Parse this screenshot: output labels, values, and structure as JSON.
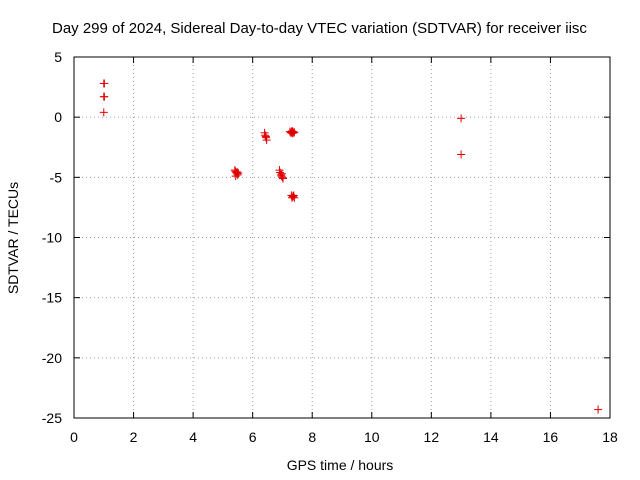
{
  "chart_data": {
    "type": "scatter",
    "title": "Day 299 of 2024, Sidereal Day-to-day VTEC variation (SDTVAR) for receiver iisc",
    "xlabel": "GPS time / hours",
    "ylabel": "SDTVAR / TECUs",
    "xlim": [
      0,
      18
    ],
    "ylim": [
      -25,
      5
    ],
    "xticks": [
      0,
      2,
      4,
      6,
      8,
      10,
      12,
      14,
      16,
      18
    ],
    "yticks": [
      5,
      0,
      -5,
      -10,
      -15,
      -20,
      -25
    ],
    "grid": true,
    "marker": "+",
    "marker_color": "#e00000",
    "series": [
      {
        "name": "SDTVAR",
        "points": [
          [
            1.0,
            2.8
          ],
          [
            1.02,
            2.8
          ],
          [
            1.0,
            1.7
          ],
          [
            1.02,
            1.7
          ],
          [
            1.0,
            0.4
          ],
          [
            5.4,
            -4.4
          ],
          [
            5.42,
            -4.5
          ],
          [
            5.45,
            -4.6
          ],
          [
            5.47,
            -4.7
          ],
          [
            5.5,
            -4.8
          ],
          [
            5.43,
            -4.9
          ],
          [
            5.48,
            -4.55
          ],
          [
            5.52,
            -4.65
          ],
          [
            6.4,
            -1.3
          ],
          [
            6.42,
            -1.5
          ],
          [
            6.45,
            -1.7
          ],
          [
            6.47,
            -1.9
          ],
          [
            6.44,
            -1.6
          ],
          [
            6.9,
            -4.4
          ],
          [
            6.92,
            -4.6
          ],
          [
            6.95,
            -4.8
          ],
          [
            6.97,
            -4.9
          ],
          [
            7.0,
            -5.0
          ],
          [
            7.02,
            -5.1
          ],
          [
            6.98,
            -4.7
          ],
          [
            7.25,
            -1.2
          ],
          [
            7.28,
            -1.3
          ],
          [
            7.3,
            -1.25
          ],
          [
            7.33,
            -1.35
          ],
          [
            7.35,
            -1.2
          ],
          [
            7.38,
            -1.3
          ],
          [
            7.4,
            -1.25
          ],
          [
            7.32,
            -1.15
          ],
          [
            7.3,
            -6.5
          ],
          [
            7.32,
            -6.7
          ],
          [
            7.35,
            -6.6
          ],
          [
            7.38,
            -6.5
          ],
          [
            7.4,
            -6.7
          ],
          [
            7.36,
            -6.55
          ],
          [
            13.0,
            -0.1
          ],
          [
            13.0,
            -3.1
          ],
          [
            17.6,
            -24.3
          ]
        ]
      }
    ]
  }
}
